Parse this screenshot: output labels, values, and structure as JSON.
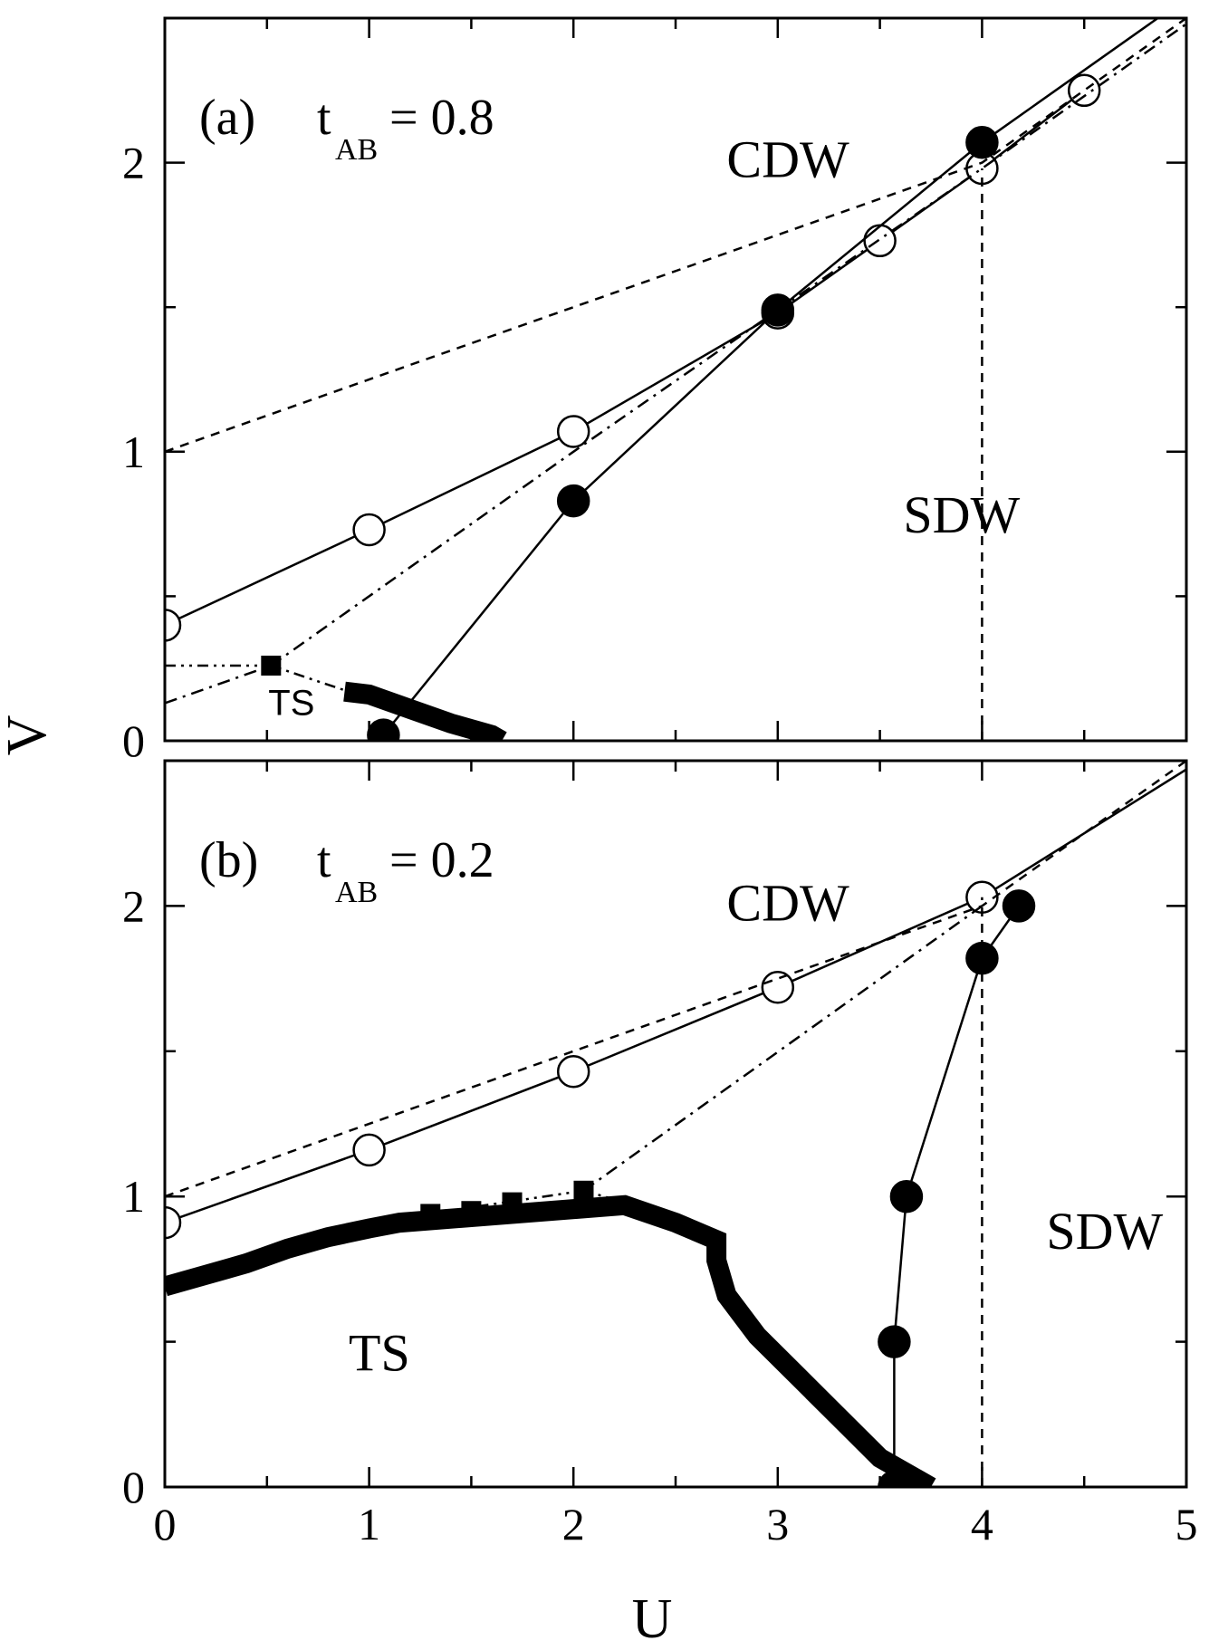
{
  "chart_data": [
    {
      "type": "line",
      "panel": "a",
      "panel_label": "(a)",
      "param_symbol": "t",
      "param_subscript": "AB",
      "param_value": "= 0.8",
      "xlabel": "U",
      "ylabel": "V",
      "xlim": [
        0,
        5
      ],
      "ylim": [
        0,
        2.5
      ],
      "xticks": [
        "0",
        "1",
        "2",
        "3",
        "4",
        "5"
      ],
      "yticks": [
        "0",
        "1",
        "2"
      ],
      "regions": [
        {
          "label": "CDW",
          "x": 3.05,
          "y": 1.95
        },
        {
          "label": "SDW",
          "x": 3.9,
          "y": 0.72
        },
        {
          "label": "TS",
          "x": 0.62,
          "y": 0.09,
          "small": true
        }
      ],
      "series": [
        {
          "style": "solid-open-circle",
          "points": [
            [
              0,
              0.4
            ],
            [
              1,
              0.73
            ],
            [
              2,
              1.07
            ],
            [
              3,
              1.48
            ],
            [
              3.5,
              1.73
            ],
            [
              4,
              1.98
            ],
            [
              4.5,
              2.25
            ]
          ]
        },
        {
          "style": "solid-filled-circle",
          "points": [
            [
              1.07,
              0.02
            ],
            [
              2,
              0.83
            ],
            [
              3,
              1.49
            ],
            [
              4,
              2.07
            ]
          ],
          "extend_to": [
            5,
            2.57
          ]
        },
        {
          "style": "dashed",
          "points": [
            [
              0,
              1.0
            ],
            [
              4,
              2.0
            ],
            [
              5,
              2.5
            ]
          ]
        },
        {
          "style": "dashed-vertical",
          "points": [
            [
              4,
              0
            ],
            [
              4,
              1.98
            ]
          ]
        },
        {
          "style": "dashdot",
          "points": [
            [
              0,
              0.13
            ],
            [
              0.52,
              0.26
            ],
            [
              2,
              1.0
            ],
            [
              3,
              1.49
            ],
            [
              4,
              1.98
            ],
            [
              5,
              2.48
            ]
          ]
        },
        {
          "style": "dashdotdot",
          "points": [
            [
              0,
              0.26
            ],
            [
              0.52,
              0.26
            ],
            [
              0.9,
              0.17
            ]
          ]
        },
        {
          "style": "filled-square",
          "points": [
            [
              0.52,
              0.26
            ]
          ]
        },
        {
          "style": "thick-square-band",
          "points": [
            [
              0.88,
              0.17
            ],
            [
              1.0,
              0.16
            ],
            [
              1.2,
              0.11
            ],
            [
              1.4,
              0.06
            ],
            [
              1.6,
              0.02
            ],
            [
              1.65,
              0.0
            ]
          ]
        }
      ]
    },
    {
      "type": "line",
      "panel": "b",
      "panel_label": "(b)",
      "param_symbol": "t",
      "param_subscript": "AB",
      "param_value": "= 0.2",
      "xlabel": "U",
      "ylabel": "V",
      "xlim": [
        0,
        5
      ],
      "ylim": [
        0,
        2.5
      ],
      "xticks": [
        "0",
        "1",
        "2",
        "3",
        "4",
        "5"
      ],
      "yticks": [
        "0",
        "1",
        "2"
      ],
      "regions": [
        {
          "label": "CDW",
          "x": 3.05,
          "y": 1.95
        },
        {
          "label": "SDW",
          "x": 4.6,
          "y": 0.82
        },
        {
          "label": "TS",
          "x": 1.05,
          "y": 0.4
        }
      ],
      "series": [
        {
          "style": "solid-open-circle",
          "points": [
            [
              0,
              0.91
            ],
            [
              1,
              1.16
            ],
            [
              2,
              1.43
            ],
            [
              3,
              1.72
            ],
            [
              4,
              2.03
            ]
          ],
          "extend_to": [
            5,
            2.47
          ]
        },
        {
          "style": "solid-filled-circle",
          "points": [
            [
              3.57,
              0.0
            ],
            [
              3.57,
              0.5
            ],
            [
              3.63,
              1.0
            ],
            [
              4,
              1.82
            ],
            [
              4.18,
              2.0
            ]
          ]
        },
        {
          "style": "dashed",
          "points": [
            [
              0,
              1.0
            ],
            [
              4,
              2.0
            ],
            [
              5,
              2.5
            ]
          ]
        },
        {
          "style": "dashed-vertical",
          "points": [
            [
              4,
              0
            ],
            [
              4,
              2.03
            ]
          ]
        },
        {
          "style": "dashdot",
          "points": [
            [
              2.05,
              1.02
            ],
            [
              4,
              2.0
            ]
          ]
        },
        {
          "style": "dashdotdot",
          "points": [
            [
              0.9,
              0.9
            ],
            [
              2.05,
              1.02
            ],
            [
              2.3,
              0.97
            ]
          ]
        },
        {
          "style": "filled-square",
          "points": [
            [
              1.3,
              0.94
            ],
            [
              1.5,
              0.95
            ],
            [
              1.7,
              0.98
            ],
            [
              2.05,
              1.02
            ]
          ]
        },
        {
          "style": "thick-square-band",
          "points": [
            [
              0,
              0.69
            ],
            [
              0.2,
              0.73
            ],
            [
              0.4,
              0.77
            ],
            [
              0.6,
              0.82
            ],
            [
              0.8,
              0.86
            ],
            [
              1.0,
              0.89
            ],
            [
              1.15,
              0.91
            ],
            [
              2.25,
              0.97
            ],
            [
              2.5,
              0.91
            ],
            [
              2.7,
              0.85
            ],
            [
              2.7,
              0.78
            ],
            [
              2.75,
              0.66
            ],
            [
              2.9,
              0.52
            ],
            [
              3.1,
              0.38
            ],
            [
              3.3,
              0.24
            ],
            [
              3.5,
              0.1
            ],
            [
              3.75,
              0.0
            ]
          ]
        }
      ]
    }
  ]
}
